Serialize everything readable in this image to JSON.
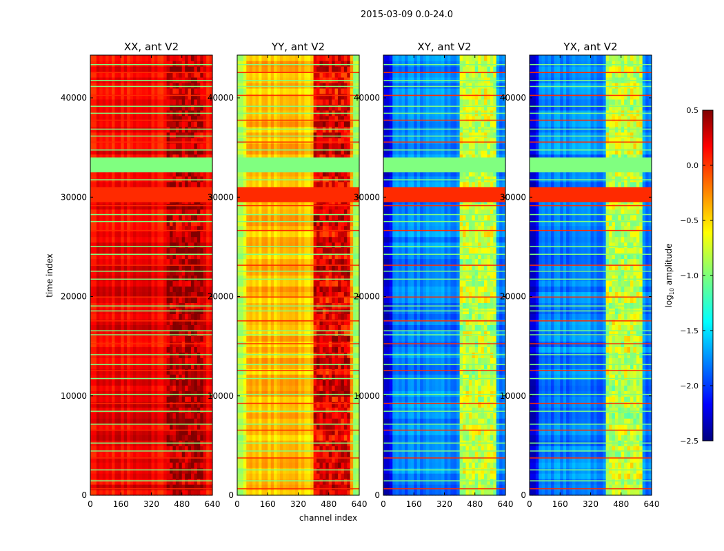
{
  "chart_data": {
    "type": "heatmap",
    "suptitle": "2015-03-09 0.0-24.0",
    "xlabel": "channel index",
    "ylabel": "time index",
    "xlim": [
      0,
      640
    ],
    "ylim": [
      0,
      44300
    ],
    "xticks": [
      "0",
      "160",
      "320",
      "480",
      "640"
    ],
    "yticks": [
      "0",
      "10000",
      "20000",
      "30000",
      "40000"
    ],
    "panels": [
      {
        "title": "XX, ant V2",
        "base": 0.15,
        "band_level": 0.35,
        "edge_drop": 0.0
      },
      {
        "title": "YY, ant V2",
        "base": -0.45,
        "band_level": 0.2,
        "edge_drop": -0.35
      },
      {
        "title": "XY, ant V2",
        "base": -1.75,
        "band_level": -0.8,
        "edge_drop": -0.45
      },
      {
        "title": "YX, ant V2",
        "base": -1.75,
        "band_level": -0.8,
        "edge_drop": -0.45
      }
    ],
    "band_channels": [
      400,
      600
    ],
    "flagged_blocks": [
      {
        "from": 29500,
        "to": 31000,
        "value": 0.0
      },
      {
        "from": 32500,
        "to": 34000,
        "value": -1.0
      }
    ],
    "flagged_lines": [
      700,
      1500,
      2600,
      3800,
      4500,
      5300,
      6600,
      7200,
      8500,
      9300,
      10200,
      11800,
      12600,
      13200,
      14200,
      15300,
      16200,
      16600,
      17600,
      18600,
      19100,
      20000,
      21800,
      22600,
      23200,
      24300,
      25100,
      26700,
      27600,
      28300,
      29200,
      31800,
      34800,
      35600,
      36200,
      36900,
      37800,
      38500,
      39200,
      40300,
      41200,
      41800,
      42600,
      43400
    ],
    "colorbar": {
      "label": "log10 amplitude",
      "label_main": "log",
      "label_sub": "10",
      "label_rest": " amplitude",
      "range": [
        -2.5,
        0.5
      ],
      "ticks": [
        "0.5",
        "0.0",
        "−0.5",
        "−1.0",
        "−1.5",
        "−2.0",
        "−2.5"
      ],
      "colormap": "jet"
    }
  }
}
